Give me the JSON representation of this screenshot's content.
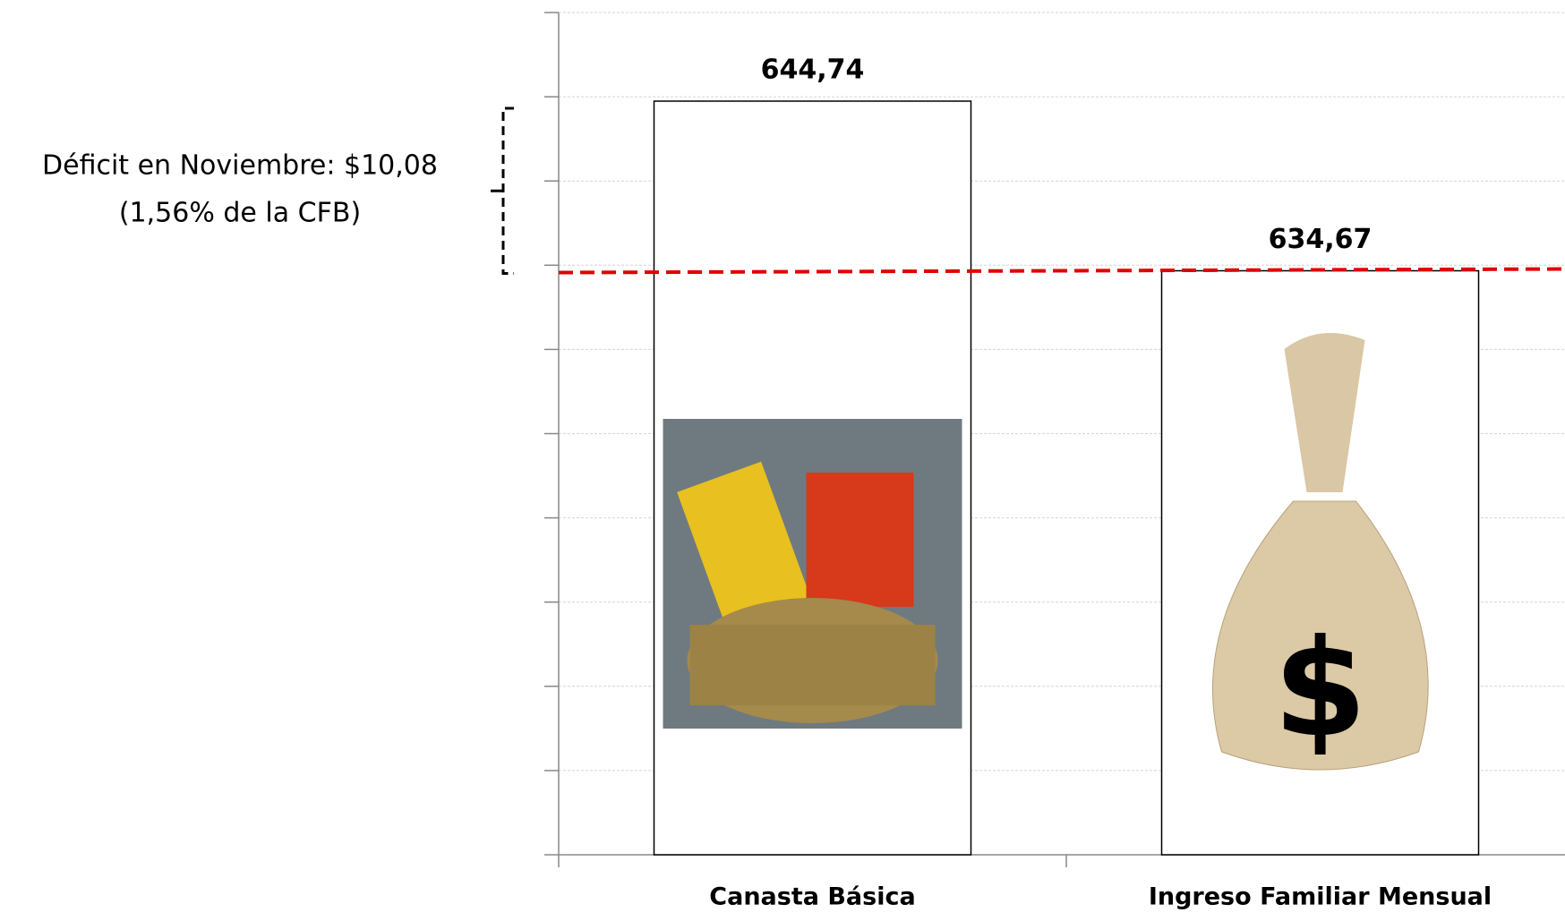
{
  "chart_data": {
    "type": "bar",
    "categories": [
      "Canasta Básica",
      "Ingreso Familiar Mensual"
    ],
    "values": [
      644.74,
      634.67
    ],
    "value_labels": [
      "644,74",
      "634,67"
    ],
    "color": "#ffffff",
    "edge_color": "#000000",
    "ylim": [
      600,
      650
    ],
    "yticks": [
      600,
      605,
      610,
      615,
      620,
      625,
      630,
      635,
      640,
      645,
      650
    ],
    "grid": true,
    "reference_line_color": "#e00000",
    "annotations": [
      "Déficit en Noviembre: $10,08",
      "(1,56% de la CFB)"
    ]
  }
}
